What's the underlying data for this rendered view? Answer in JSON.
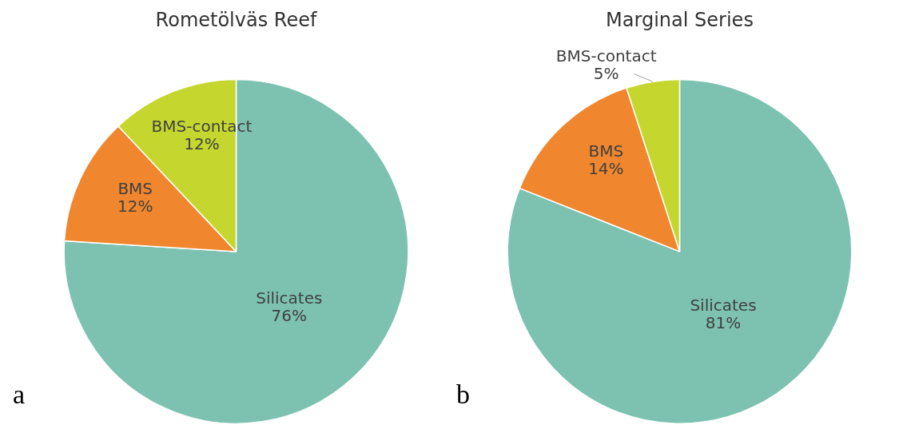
{
  "chart_data": [
    {
      "type": "pie",
      "title": "Rometölväs Reef",
      "categories": [
        "Silicates",
        "BMS",
        "BMS-contact"
      ],
      "values": [
        76,
        12,
        12
      ],
      "colors": [
        "#7dc2b0",
        "#f0862e",
        "#c5d72e"
      ],
      "value_labels": [
        "76%",
        "12%",
        "12%"
      ],
      "legend": false,
      "annotations": [
        "a"
      ]
    },
    {
      "type": "pie",
      "title": "Marginal Series",
      "categories": [
        "Silicates",
        "BMS",
        "BMS-contact"
      ],
      "values": [
        81,
        14,
        5
      ],
      "colors": [
        "#7dc2b0",
        "#f0862e",
        "#c5d72e"
      ],
      "value_labels": [
        "81%",
        "14%",
        "5%"
      ],
      "legend": false,
      "annotations": [
        "b"
      ]
    }
  ]
}
